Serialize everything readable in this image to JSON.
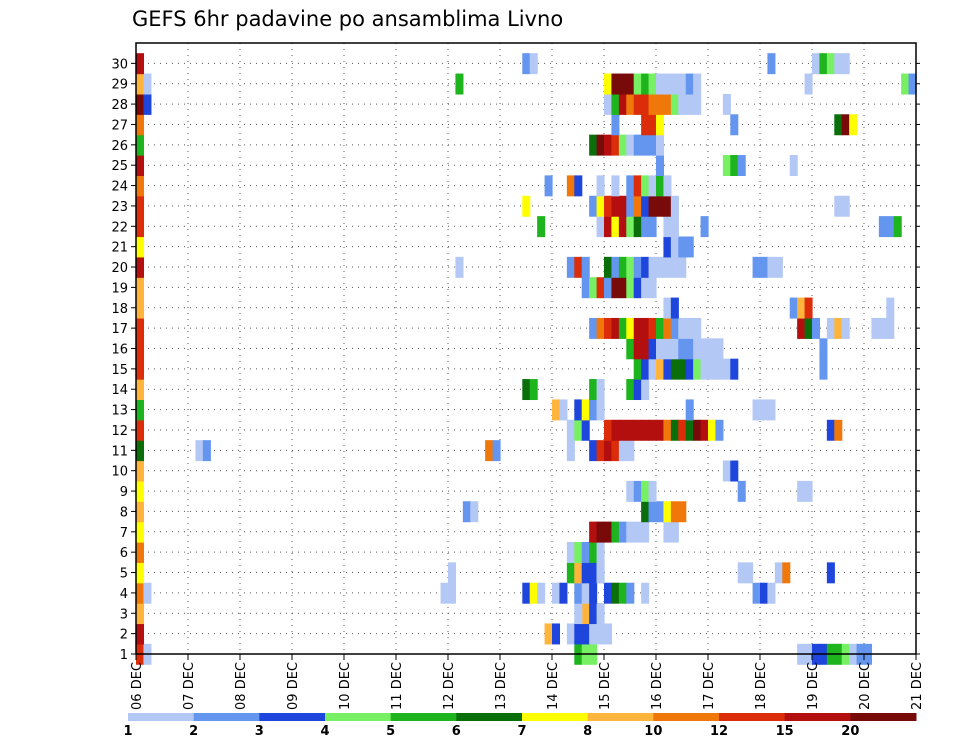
{
  "chart_data": {
    "type": "heatmap",
    "title": "GEFS 6hr padavine po ansamblima Livno",
    "y_tick_labels": [
      "1",
      "2",
      "3",
      "4",
      "5",
      "6",
      "7",
      "8",
      "9",
      "10",
      "11",
      "12",
      "13",
      "14",
      "15",
      "16",
      "17",
      "18",
      "19",
      "20",
      "21",
      "22",
      "23",
      "24",
      "25",
      "26",
      "27",
      "28",
      "29",
      "30"
    ],
    "x_tick_labels": [
      "06 DEC",
      "07 DEC",
      "08 DEC",
      "09 DEC",
      "10 DEC",
      "11 DEC",
      "12 DEC",
      "13 DEC",
      "14 DEC",
      "15 DEC",
      "16 DEC",
      "17 DEC",
      "18 DEC",
      "19 DEC",
      "20 DEC",
      "21 DEC"
    ],
    "x_range_days": [
      0,
      15
    ],
    "y_range_members": [
      0,
      30
    ],
    "colorbar": {
      "thresholds": [
        "1",
        "2",
        "3",
        "4",
        "5",
        "6",
        "7",
        "8",
        "10",
        "12",
        "15",
        "20"
      ],
      "colors": [
        "#b4c8f5",
        "#6496f0",
        "#1e46dc",
        "#78f064",
        "#1eb41e",
        "#0a6e0a",
        "#ffff00",
        "#ffb43c",
        "#f0780a",
        "#dc2d0a",
        "#b40f0f",
        "#780a0a"
      ]
    },
    "grid": "dotted",
    "cells": [
      [
        1,
        0,
        10
      ],
      [
        1,
        1,
        1
      ],
      [
        1,
        89,
        1
      ],
      [
        1,
        90,
        1
      ],
      [
        1,
        91,
        3
      ],
      [
        1,
        92,
        3
      ],
      [
        1,
        93,
        5
      ],
      [
        1,
        94,
        5
      ],
      [
        1,
        95,
        4
      ],
      [
        1,
        96,
        1
      ],
      [
        1,
        97,
        2
      ],
      [
        1,
        98,
        2
      ],
      [
        1,
        59,
        5
      ],
      [
        1,
        60,
        4
      ],
      [
        1,
        61,
        4
      ],
      [
        2,
        0,
        11
      ],
      [
        2,
        55,
        8
      ],
      [
        2,
        56,
        3
      ],
      [
        2,
        58,
        1
      ],
      [
        2,
        59,
        3
      ],
      [
        2,
        60,
        3
      ],
      [
        2,
        61,
        1
      ],
      [
        2,
        62,
        1
      ],
      [
        2,
        63,
        1
      ],
      [
        3,
        0,
        8
      ],
      [
        3,
        60,
        8
      ],
      [
        3,
        61,
        3
      ],
      [
        3,
        59,
        1
      ],
      [
        3,
        62,
        1
      ],
      [
        4,
        0,
        9
      ],
      [
        4,
        1,
        1
      ],
      [
        4,
        41,
        1
      ],
      [
        4,
        42,
        1
      ],
      [
        4,
        52,
        3
      ],
      [
        4,
        53,
        7
      ],
      [
        4,
        54,
        1
      ],
      [
        4,
        56,
        1
      ],
      [
        4,
        57,
        3
      ],
      [
        4,
        59,
        2
      ],
      [
        4,
        60,
        1
      ],
      [
        4,
        61,
        3
      ],
      [
        4,
        63,
        3
      ],
      [
        4,
        64,
        6
      ],
      [
        4,
        65,
        5
      ],
      [
        4,
        66,
        2
      ],
      [
        4,
        68,
        1
      ],
      [
        4,
        83,
        2
      ],
      [
        4,
        84,
        3
      ],
      [
        4,
        85,
        1
      ],
      [
        5,
        0,
        7
      ],
      [
        5,
        42,
        1
      ],
      [
        5,
        58,
        5
      ],
      [
        5,
        59,
        8
      ],
      [
        5,
        60,
        3
      ],
      [
        5,
        61,
        3
      ],
      [
        5,
        62,
        1
      ],
      [
        5,
        62,
        1
      ],
      [
        5,
        93,
        3
      ],
      [
        5,
        86,
        1
      ],
      [
        5,
        87,
        9
      ],
      [
        5,
        81,
        1
      ],
      [
        5,
        82,
        1
      ],
      [
        6,
        0,
        9
      ],
      [
        6,
        58,
        1
      ],
      [
        6,
        59,
        4
      ],
      [
        6,
        60,
        2
      ],
      [
        6,
        61,
        5
      ],
      [
        6,
        62,
        1
      ],
      [
        7,
        0,
        7
      ],
      [
        7,
        61,
        11
      ],
      [
        7,
        62,
        12
      ],
      [
        7,
        63,
        12
      ],
      [
        7,
        64,
        5
      ],
      [
        7,
        65,
        2
      ],
      [
        7,
        66,
        1
      ],
      [
        7,
        67,
        1
      ],
      [
        7,
        68,
        1
      ],
      [
        7,
        71,
        1
      ],
      [
        7,
        72,
        1
      ],
      [
        8,
        0,
        8
      ],
      [
        8,
        44,
        2
      ],
      [
        8,
        45,
        1
      ],
      [
        8,
        68,
        6
      ],
      [
        8,
        69,
        2
      ],
      [
        8,
        70,
        2
      ],
      [
        8,
        71,
        7
      ],
      [
        8,
        72,
        9
      ],
      [
        8,
        73,
        9
      ],
      [
        9,
        0,
        7
      ],
      [
        9,
        66,
        1
      ],
      [
        9,
        67,
        2
      ],
      [
        9,
        68,
        4
      ],
      [
        9,
        69,
        1
      ],
      [
        9,
        81,
        2
      ],
      [
        9,
        89,
        1
      ],
      [
        9,
        90,
        1
      ],
      [
        10,
        0,
        8
      ],
      [
        10,
        79,
        1
      ],
      [
        10,
        80,
        3
      ],
      [
        11,
        0,
        6
      ],
      [
        11,
        8,
        1
      ],
      [
        11,
        9,
        2
      ],
      [
        11,
        47,
        9
      ],
      [
        11,
        48,
        2
      ],
      [
        11,
        58,
        1
      ],
      [
        11,
        61,
        3
      ],
      [
        11,
        62,
        10
      ],
      [
        11,
        63,
        11
      ],
      [
        11,
        64,
        10
      ],
      [
        11,
        65,
        1
      ],
      [
        11,
        66,
        1
      ],
      [
        12,
        0,
        10
      ],
      [
        12,
        58,
        1
      ],
      [
        12,
        59,
        4
      ],
      [
        12,
        60,
        3
      ],
      [
        12,
        63,
        10
      ],
      [
        12,
        64,
        11
      ],
      [
        12,
        65,
        11
      ],
      [
        12,
        66,
        11
      ],
      [
        12,
        67,
        11
      ],
      [
        12,
        68,
        11
      ],
      [
        12,
        69,
        11
      ],
      [
        12,
        70,
        11
      ],
      [
        12,
        71,
        9
      ],
      [
        12,
        72,
        6
      ],
      [
        12,
        73,
        10
      ],
      [
        12,
        74,
        6
      ],
      [
        12,
        75,
        12
      ],
      [
        12,
        76,
        11
      ],
      [
        12,
        77,
        7
      ],
      [
        12,
        78,
        2
      ],
      [
        12,
        93,
        3
      ],
      [
        12,
        94,
        9
      ],
      [
        13,
        0,
        5
      ],
      [
        13,
        56,
        8
      ],
      [
        13,
        57,
        1
      ],
      [
        13,
        59,
        3
      ],
      [
        13,
        60,
        7
      ],
      [
        13,
        61,
        2
      ],
      [
        13,
        62,
        1
      ],
      [
        13,
        74,
        2
      ],
      [
        13,
        83,
        1
      ],
      [
        13,
        84,
        1
      ],
      [
        13,
        85,
        1
      ],
      [
        14,
        0,
        8
      ],
      [
        14,
        52,
        6
      ],
      [
        14,
        53,
        5
      ],
      [
        14,
        61,
        5
      ],
      [
        14,
        62,
        1
      ],
      [
        14,
        66,
        5
      ],
      [
        14,
        67,
        3
      ],
      [
        14,
        68,
        1
      ],
      [
        15,
        0,
        10
      ],
      [
        15,
        67,
        5
      ],
      [
        15,
        68,
        3
      ],
      [
        15,
        69,
        1
      ],
      [
        15,
        70,
        8
      ],
      [
        15,
        71,
        3
      ],
      [
        15,
        72,
        6
      ],
      [
        15,
        73,
        6
      ],
      [
        15,
        74,
        3
      ],
      [
        15,
        75,
        4
      ],
      [
        15,
        76,
        1
      ],
      [
        15,
        77,
        1
      ],
      [
        15,
        78,
        1
      ],
      [
        15,
        79,
        1
      ],
      [
        15,
        80,
        3
      ],
      [
        15,
        92,
        2
      ],
      [
        16,
        0,
        10
      ],
      [
        16,
        66,
        5
      ],
      [
        16,
        67,
        11
      ],
      [
        16,
        68,
        11
      ],
      [
        16,
        69,
        3
      ],
      [
        16,
        70,
        1
      ],
      [
        16,
        71,
        1
      ],
      [
        16,
        72,
        1
      ],
      [
        16,
        73,
        2
      ],
      [
        16,
        74,
        2
      ],
      [
        16,
        75,
        1
      ],
      [
        16,
        76,
        1
      ],
      [
        16,
        77,
        1
      ],
      [
        16,
        78,
        1
      ],
      [
        16,
        92,
        2
      ],
      [
        17,
        0,
        10
      ],
      [
        17,
        61,
        2
      ],
      [
        17,
        62,
        9
      ],
      [
        17,
        63,
        10
      ],
      [
        17,
        64,
        11
      ],
      [
        17,
        65,
        5
      ],
      [
        17,
        66,
        7
      ],
      [
        17,
        67,
        11
      ],
      [
        17,
        68,
        11
      ],
      [
        17,
        69,
        10
      ],
      [
        17,
        70,
        5
      ],
      [
        17,
        71,
        9
      ],
      [
        17,
        72,
        2
      ],
      [
        17,
        73,
        1
      ],
      [
        17,
        74,
        1
      ],
      [
        17,
        75,
        1
      ],
      [
        17,
        89,
        11
      ],
      [
        17,
        90,
        6
      ],
      [
        17,
        91,
        2
      ],
      [
        17,
        93,
        1
      ],
      [
        17,
        94,
        8
      ],
      [
        17,
        95,
        1
      ],
      [
        17,
        99,
        1
      ],
      [
        17,
        100,
        1
      ],
      [
        17,
        101,
        1
      ],
      [
        18,
        0,
        8
      ],
      [
        18,
        71,
        1
      ],
      [
        18,
        72,
        3
      ],
      [
        18,
        88,
        2
      ],
      [
        18,
        89,
        8
      ],
      [
        18,
        90,
        10
      ],
      [
        18,
        101,
        1
      ],
      [
        19,
        0,
        8
      ],
      [
        19,
        60,
        2
      ],
      [
        19,
        61,
        4
      ],
      [
        19,
        62,
        10
      ],
      [
        19,
        63,
        2
      ],
      [
        19,
        64,
        12
      ],
      [
        19,
        65,
        12
      ],
      [
        19,
        66,
        4
      ],
      [
        19,
        67,
        3
      ],
      [
        19,
        68,
        1
      ],
      [
        19,
        69,
        1
      ],
      [
        20,
        0,
        11
      ],
      [
        20,
        43,
        1
      ],
      [
        20,
        58,
        2
      ],
      [
        20,
        59,
        10
      ],
      [
        20,
        60,
        2
      ],
      [
        20,
        63,
        6
      ],
      [
        20,
        64,
        2
      ],
      [
        20,
        65,
        5
      ],
      [
        20,
        66,
        4
      ],
      [
        20,
        67,
        2
      ],
      [
        20,
        68,
        3
      ],
      [
        20,
        69,
        1
      ],
      [
        20,
        70,
        1
      ],
      [
        20,
        71,
        1
      ],
      [
        20,
        72,
        1
      ],
      [
        20,
        73,
        1
      ],
      [
        20,
        83,
        2
      ],
      [
        20,
        84,
        2
      ],
      [
        20,
        85,
        1
      ],
      [
        20,
        86,
        1
      ],
      [
        21,
        0,
        7
      ],
      [
        21,
        71,
        3
      ],
      [
        21,
        72,
        1
      ],
      [
        21,
        73,
        2
      ],
      [
        21,
        74,
        2
      ],
      [
        22,
        0,
        10
      ],
      [
        22,
        54,
        5
      ],
      [
        22,
        62,
        1
      ],
      [
        22,
        63,
        11
      ],
      [
        22,
        64,
        7
      ],
      [
        22,
        65,
        11
      ],
      [
        22,
        66,
        4
      ],
      [
        22,
        67,
        6
      ],
      [
        22,
        68,
        2
      ],
      [
        22,
        69,
        2
      ],
      [
        22,
        71,
        1
      ],
      [
        22,
        72,
        1
      ],
      [
        22,
        76,
        2
      ],
      [
        22,
        100,
        2
      ],
      [
        22,
        101,
        2
      ],
      [
        22,
        102,
        5
      ],
      [
        23,
        0,
        10
      ],
      [
        23,
        52,
        7
      ],
      [
        23,
        61,
        2
      ],
      [
        23,
        62,
        7
      ],
      [
        23,
        63,
        10
      ],
      [
        23,
        64,
        11
      ],
      [
        23,
        65,
        11
      ],
      [
        23,
        66,
        2
      ],
      [
        23,
        67,
        9
      ],
      [
        23,
        68,
        3
      ],
      [
        23,
        69,
        12
      ],
      [
        23,
        70,
        12
      ],
      [
        23,
        71,
        12
      ],
      [
        23,
        72,
        1
      ],
      [
        23,
        94,
        1
      ],
      [
        23,
        95,
        1
      ],
      [
        24,
        0,
        9
      ],
      [
        24,
        55,
        2
      ],
      [
        24,
        58,
        9
      ],
      [
        24,
        59,
        3
      ],
      [
        24,
        62,
        1
      ],
      [
        24,
        64,
        1
      ],
      [
        24,
        66,
        2
      ],
      [
        24,
        67,
        10
      ],
      [
        24,
        68,
        4
      ],
      [
        24,
        69,
        1
      ],
      [
        24,
        70,
        5
      ],
      [
        24,
        71,
        1
      ],
      [
        25,
        0,
        11
      ],
      [
        25,
        70,
        2
      ],
      [
        25,
        79,
        4
      ],
      [
        25,
        80,
        5
      ],
      [
        25,
        81,
        2
      ],
      [
        25,
        88,
        1
      ],
      [
        26,
        0,
        5
      ],
      [
        26,
        61,
        6
      ],
      [
        26,
        62,
        12
      ],
      [
        26,
        63,
        11
      ],
      [
        26,
        64,
        10
      ],
      [
        26,
        65,
        4
      ],
      [
        26,
        66,
        1
      ],
      [
        26,
        67,
        2
      ],
      [
        26,
        68,
        2
      ],
      [
        26,
        69,
        2
      ],
      [
        26,
        70,
        1
      ],
      [
        27,
        0,
        9
      ],
      [
        27,
        64,
        2
      ],
      [
        27,
        68,
        10
      ],
      [
        27,
        69,
        10
      ],
      [
        27,
        70,
        7
      ],
      [
        27,
        80,
        2
      ],
      [
        27,
        94,
        6
      ],
      [
        27,
        95,
        12
      ],
      [
        27,
        96,
        7
      ],
      [
        28,
        0,
        12
      ],
      [
        28,
        1,
        3
      ],
      [
        28,
        63,
        1
      ],
      [
        28,
        64,
        5
      ],
      [
        28,
        65,
        11
      ],
      [
        28,
        66,
        9
      ],
      [
        28,
        67,
        10
      ],
      [
        28,
        68,
        10
      ],
      [
        28,
        69,
        9
      ],
      [
        28,
        70,
        9
      ],
      [
        28,
        71,
        9
      ],
      [
        28,
        72,
        4
      ],
      [
        28,
        73,
        1
      ],
      [
        28,
        74,
        1
      ],
      [
        28,
        75,
        1
      ],
      [
        28,
        79,
        1
      ],
      [
        29,
        0,
        8
      ],
      [
        29,
        1,
        1
      ],
      [
        29,
        43,
        5
      ],
      [
        29,
        63,
        7
      ],
      [
        29,
        64,
        12
      ],
      [
        29,
        65,
        12
      ],
      [
        29,
        66,
        12
      ],
      [
        29,
        67,
        4
      ],
      [
        29,
        68,
        5
      ],
      [
        29,
        69,
        4
      ],
      [
        29,
        70,
        1
      ],
      [
        29,
        71,
        1
      ],
      [
        29,
        72,
        1
      ],
      [
        29,
        73,
        1
      ],
      [
        29,
        74,
        2
      ],
      [
        29,
        75,
        1
      ],
      [
        29,
        90,
        1
      ],
      [
        29,
        103,
        4
      ],
      [
        29,
        104,
        2
      ],
      [
        30,
        0,
        11
      ],
      [
        30,
        52,
        2
      ],
      [
        30,
        53,
        1
      ],
      [
        30,
        85,
        2
      ],
      [
        30,
        91,
        1
      ],
      [
        30,
        92,
        5
      ],
      [
        30,
        93,
        4
      ],
      [
        30,
        94,
        1
      ],
      [
        30,
        95,
        1
      ]
    ]
  }
}
